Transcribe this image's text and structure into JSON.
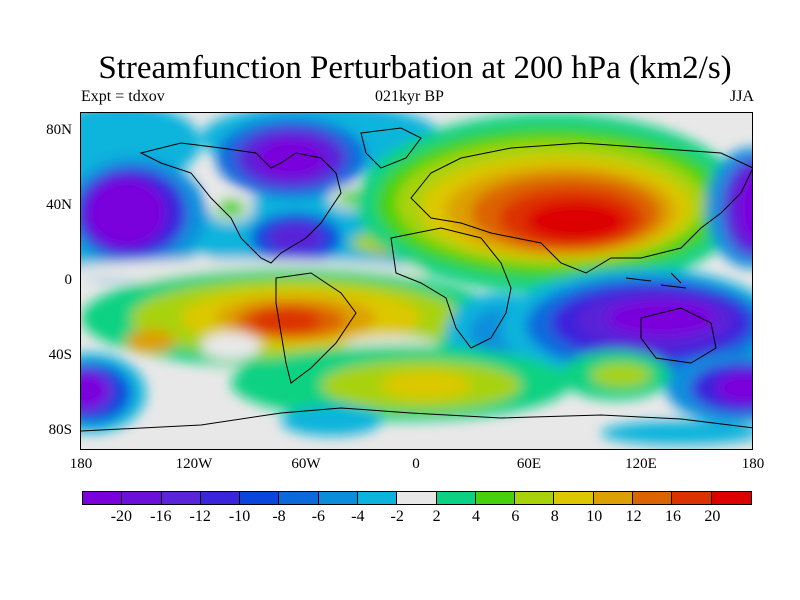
{
  "title": "Streamfunction Perturbation at 200 hPa (km2/s)",
  "subtitle_left": "Expt = tdxov",
  "subtitle_center": "021kyr BP",
  "subtitle_right": "JJA",
  "lat_labels": [
    "80N",
    "40N",
    "0",
    "40S",
    "80S"
  ],
  "lon_labels": [
    "180",
    "120W",
    "60W",
    "0",
    "60E",
    "120E",
    "180"
  ],
  "colorbar": {
    "colors": [
      "#7a00dc",
      "#6a10d8",
      "#5a24d8",
      "#3a24dc",
      "#0a46dc",
      "#0a6adc",
      "#0a8edc",
      "#0ab4dc",
      "#e8e8e8",
      "#0ad282",
      "#46d20a",
      "#a8d20a",
      "#dcc800",
      "#dca000",
      "#dc6400",
      "#dc3200",
      "#dc0000"
    ],
    "labels": [
      "-20",
      "-16",
      "-12",
      "-10",
      "-8",
      "-6",
      "-4",
      "-2",
      "2",
      "4",
      "6",
      "8",
      "10",
      "12",
      "16",
      "20"
    ]
  },
  "map": {
    "background": "#e8e8e8",
    "coastline_color": "#000000"
  }
}
